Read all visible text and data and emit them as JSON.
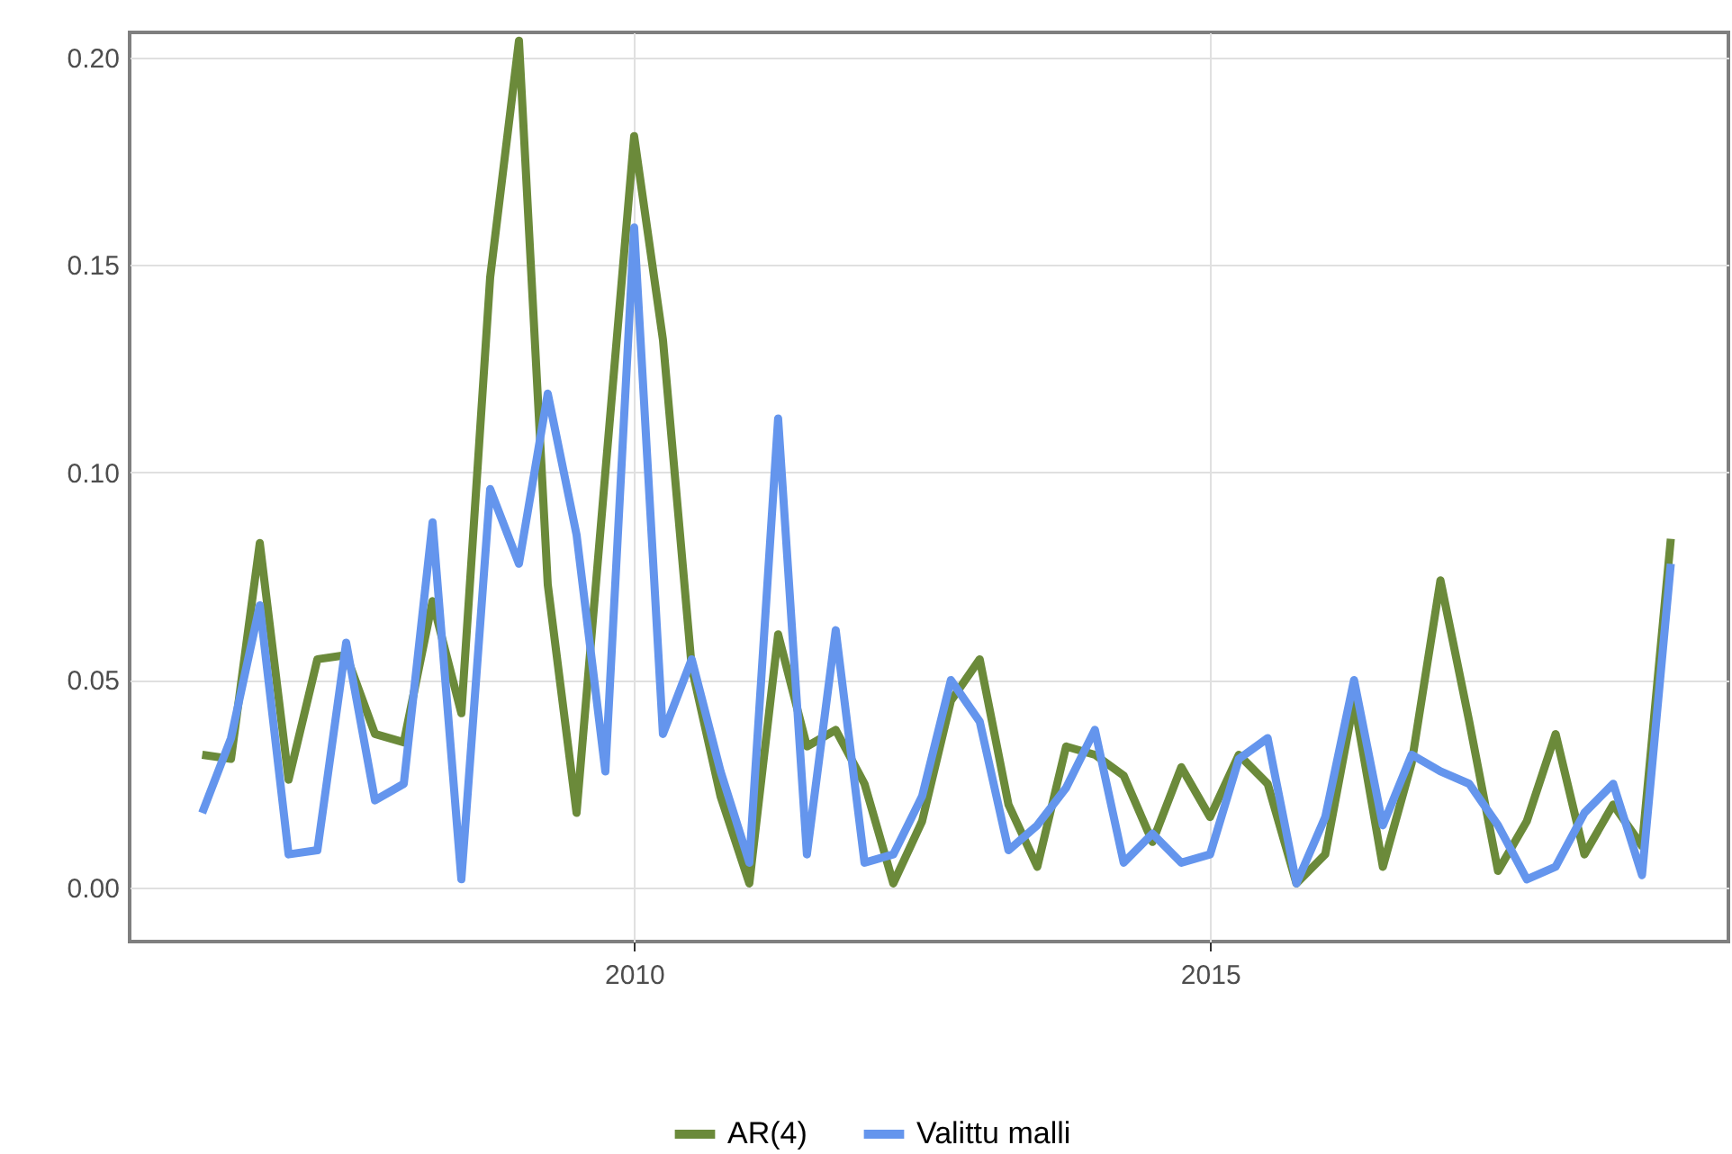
{
  "chart_data": {
    "type": "line",
    "x": [
      2006.25,
      2006.5,
      2006.75,
      2007,
      2007.25,
      2007.5,
      2007.75,
      2008,
      2008.25,
      2008.5,
      2008.75,
      2009,
      2009.25,
      2009.5,
      2009.75,
      2010,
      2010.25,
      2010.5,
      2010.75,
      2011,
      2011.25,
      2011.5,
      2011.75,
      2012,
      2012.25,
      2012.5,
      2012.75,
      2013,
      2013.25,
      2013.5,
      2013.75,
      2014,
      2014.25,
      2014.5,
      2014.75,
      2015,
      2015.25,
      2015.5,
      2015.75,
      2016,
      2016.25,
      2016.5,
      2016.75,
      2017,
      2017.25,
      2017.5,
      2017.75,
      2018,
      2018.25,
      2018.5,
      2018.75,
      2019
    ],
    "series": [
      {
        "name": "AR(4)",
        "color": "#6b8a3a",
        "values": [
          0.032,
          0.031,
          0.083,
          0.026,
          0.055,
          0.056,
          0.037,
          0.035,
          0.069,
          0.042,
          0.147,
          0.204,
          0.073,
          0.018,
          0.1,
          0.181,
          0.132,
          0.053,
          0.022,
          0.001,
          0.061,
          0.034,
          0.038,
          0.025,
          0.001,
          0.016,
          0.045,
          0.055,
          0.02,
          0.005,
          0.034,
          0.032,
          0.027,
          0.011,
          0.029,
          0.017,
          0.032,
          0.025,
          0.001,
          0.008,
          0.045,
          0.005,
          0.03,
          0.074,
          0.04,
          0.004,
          0.016,
          0.037,
          0.008,
          0.02,
          0.01,
          0.084
        ]
      },
      {
        "name": "Valittu malli",
        "color": "#6495ed",
        "values": [
          0.018,
          0.036,
          0.068,
          0.008,
          0.009,
          0.059,
          0.021,
          0.025,
          0.088,
          0.002,
          0.096,
          0.078,
          0.119,
          0.085,
          0.028,
          0.159,
          0.037,
          0.055,
          0.028,
          0.006,
          0.113,
          0.008,
          0.062,
          0.006,
          0.008,
          0.022,
          0.05,
          0.04,
          0.009,
          0.015,
          0.024,
          0.038,
          0.006,
          0.013,
          0.006,
          0.008,
          0.031,
          0.036,
          0.001,
          0.017,
          0.05,
          0.015,
          0.032,
          0.028,
          0.025,
          0.015,
          0.002,
          0.005,
          0.018,
          0.025,
          0.003,
          0.078
        ]
      }
    ],
    "xlim": [
      2005.62,
      2019.5
    ],
    "xticks": [
      2010,
      2015
    ],
    "ylim": [
      -0.013,
      0.206
    ],
    "yticks": [
      {
        "value": 0,
        "label": "0.00"
      },
      0.05,
      {
        "value": 0.1,
        "label": "0.10"
      },
      0.15,
      {
        "value": 0.2,
        "label": "0.20"
      }
    ],
    "grid": true,
    "legend": "bottom",
    "line_style": "solid"
  }
}
